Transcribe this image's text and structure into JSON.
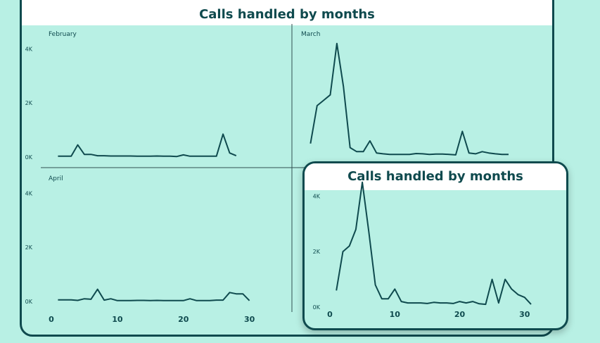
{
  "chart_data": [
    {
      "type": "line",
      "title": "Calls handled by months",
      "panels": [
        {
          "name": "February",
          "x": [
            1,
            2,
            3,
            4,
            5,
            6,
            7,
            8,
            9,
            10,
            11,
            12,
            13,
            14,
            15,
            16,
            17,
            18,
            19,
            20,
            21,
            22,
            23,
            24,
            25,
            26,
            27,
            28
          ],
          "y": [
            30,
            30,
            30,
            450,
            100,
            100,
            50,
            50,
            40,
            40,
            40,
            40,
            30,
            30,
            30,
            40,
            30,
            30,
            20,
            80,
            30,
            30,
            30,
            30,
            30,
            850,
            150,
            50
          ]
        },
        {
          "name": "March",
          "x": [
            1,
            2,
            3,
            4,
            5,
            6,
            7,
            8,
            9,
            10,
            11,
            12,
            13,
            14,
            15,
            16,
            17,
            18,
            19,
            20,
            21,
            22,
            23,
            24,
            25,
            26,
            27,
            28,
            29,
            30,
            31
          ],
          "y": [
            500,
            1900,
            2100,
            2300,
            4200,
            2600,
            350,
            200,
            200,
            600,
            150,
            120,
            100,
            100,
            100,
            100,
            130,
            120,
            100,
            110,
            110,
            100,
            80,
            950,
            150,
            120,
            200,
            150,
            120,
            100,
            100
          ]
        },
        {
          "name": "April",
          "x": [
            1,
            2,
            3,
            4,
            5,
            6,
            7,
            8,
            9,
            10,
            11,
            12,
            13,
            14,
            15,
            16,
            17,
            18,
            19,
            20,
            21,
            22,
            23,
            24,
            25,
            26,
            27,
            28,
            29,
            30
          ],
          "y": [
            60,
            60,
            60,
            40,
            100,
            80,
            450,
            50,
            100,
            30,
            30,
            30,
            40,
            40,
            30,
            40,
            30,
            30,
            30,
            30,
            100,
            30,
            30,
            30,
            50,
            50,
            330,
            280,
            280,
            30
          ]
        }
      ],
      "x_ticks": [
        "0",
        "10",
        "20",
        "30"
      ],
      "y_ticks": [
        "0K",
        "2K",
        "4K"
      ],
      "ylim": [
        0,
        5000
      ],
      "xlim": [
        0,
        31
      ]
    },
    {
      "type": "line",
      "title": "Calls handled by months",
      "x": [
        1,
        2,
        3,
        4,
        5,
        6,
        7,
        8,
        9,
        10,
        11,
        12,
        13,
        14,
        15,
        16,
        17,
        18,
        19,
        20,
        21,
        22,
        23,
        24,
        25,
        26,
        27,
        28,
        29,
        30,
        31
      ],
      "y": [
        600,
        2000,
        2200,
        2800,
        4500,
        2700,
        800,
        300,
        300,
        650,
        200,
        150,
        150,
        150,
        130,
        170,
        150,
        150,
        130,
        200,
        150,
        200,
        120,
        100,
        1000,
        150,
        1000,
        650,
        450,
        350,
        100
      ],
      "x_ticks": [
        "0",
        "10",
        "20",
        "30"
      ],
      "y_ticks": [
        "0K",
        "2K",
        "4K"
      ],
      "ylim": [
        0,
        5000
      ],
      "xlim": [
        0,
        31
      ]
    }
  ]
}
